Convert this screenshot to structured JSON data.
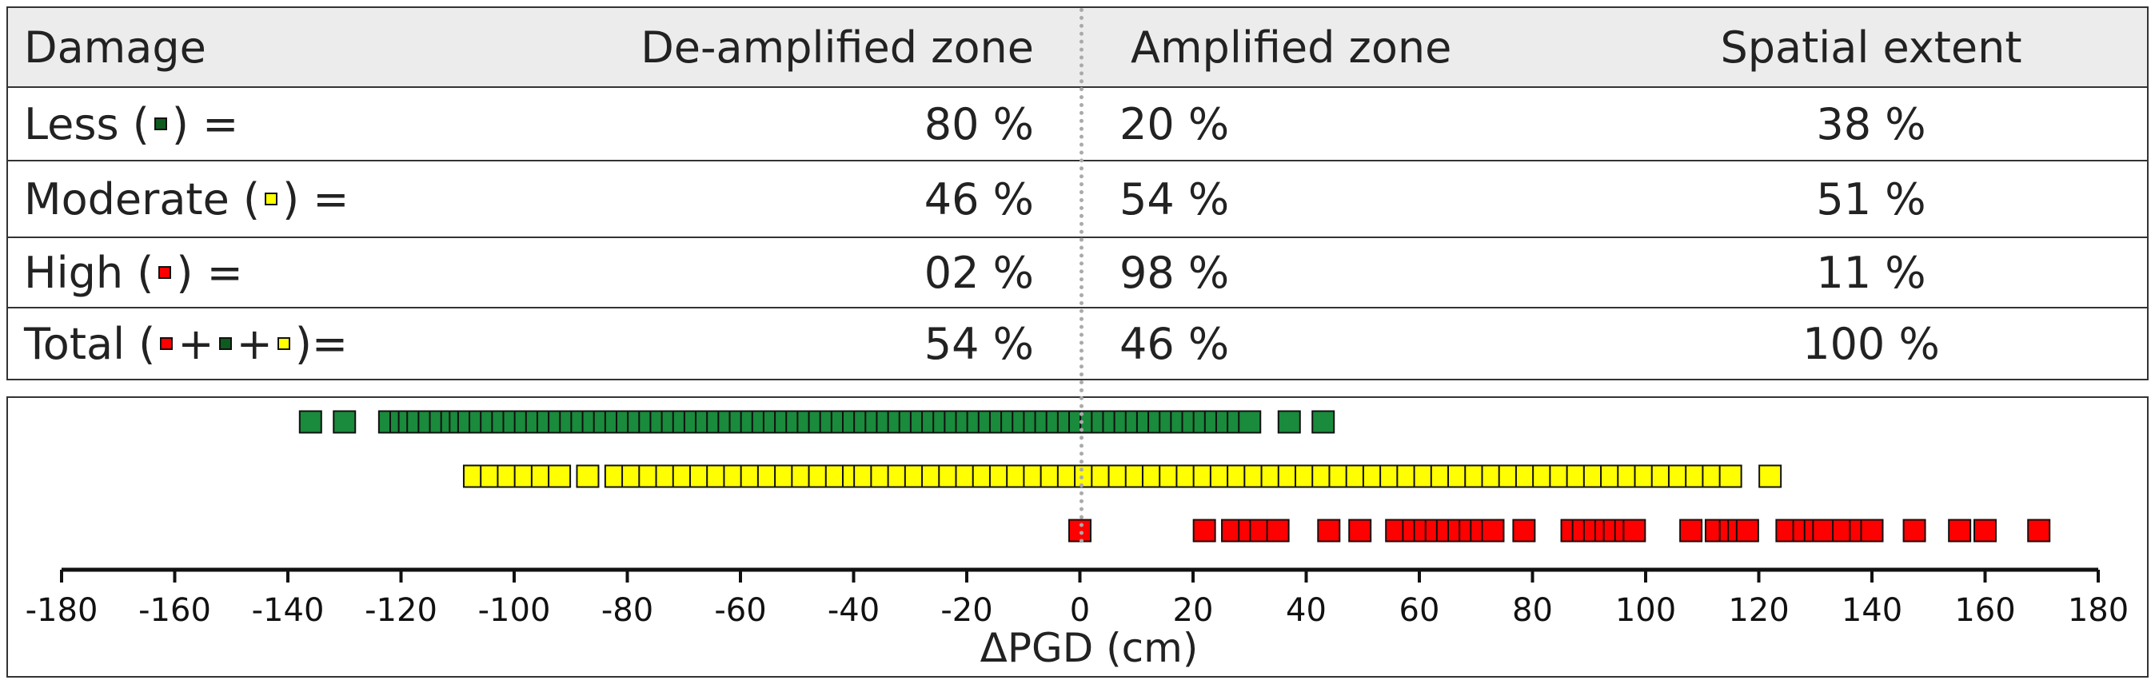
{
  "table": {
    "headers": {
      "damage": "Damage",
      "deamplified": "De-amplified zone",
      "amplified": "Amplified zone",
      "spatial": "Spatial extent"
    },
    "rows": [
      {
        "label": "Less (",
        "suffix": ") =",
        "de": "80 %",
        "amp": "20 %",
        "spatial": "38 %"
      },
      {
        "label": "Moderate (",
        "suffix": ") =",
        "de": "46 %",
        "amp": "54 %",
        "spatial": "51 %"
      },
      {
        "label": "High (",
        "suffix": ") =",
        "de": "02 %",
        "amp": "98 %",
        "spatial": "11 %"
      },
      {
        "label": "Total (",
        "plus1": "+",
        "plus2": "+",
        "suffix": ")=",
        "de": "54 %",
        "amp": "46 %",
        "spatial": "100 %"
      }
    ]
  },
  "colors": {
    "less": "#1a8a3c",
    "moderate": "#ffff00",
    "high": "#ff0000",
    "less_swatch": "#0d5c1e",
    "divider": "#aaaaaa"
  },
  "chart_data": {
    "type": "scatter",
    "xlabel": "ΔPGD (cm)",
    "xlim": [
      -180,
      180
    ],
    "xticks": [
      -180,
      -160,
      -140,
      -120,
      -100,
      -80,
      -60,
      -40,
      -20,
      0,
      20,
      40,
      60,
      80,
      100,
      120,
      140,
      160,
      180
    ],
    "series": [
      {
        "key": "less",
        "color": "#1a8a3c",
        "x": [
          -136,
          -130,
          -122,
          -120,
          -118.5,
          -117,
          -115,
          -113,
          -111,
          -109.5,
          -108,
          -106,
          -104,
          -102,
          -100,
          -98,
          -96,
          -94,
          -92,
          -90,
          -88,
          -86,
          -84,
          -82,
          -80,
          -78,
          -76,
          -74,
          -72,
          -70,
          -68,
          -66,
          -64,
          -62,
          -60,
          -58,
          -56,
          -54,
          -52,
          -50,
          -48,
          -46,
          -44,
          -42,
          -40,
          -38,
          -36,
          -34,
          -32,
          -30,
          -28,
          -26,
          -24,
          -22,
          -20,
          -18,
          -16,
          -14,
          -12,
          -10,
          -8,
          -6,
          -4,
          -2,
          0,
          2,
          4,
          6,
          8,
          10,
          12,
          14,
          16,
          18,
          20,
          22,
          24,
          26,
          28,
          30,
          37,
          43
        ]
      },
      {
        "key": "moderate",
        "color": "#ffff00",
        "x": [
          -107,
          -104,
          -101,
          -98,
          -95,
          -92,
          -87,
          -82,
          -79,
          -76,
          -73,
          -70,
          -67,
          -64,
          -61,
          -58,
          -55,
          -52,
          -49,
          -46,
          -43,
          -40,
          -38,
          -35,
          -32,
          -29,
          -26,
          -23,
          -20,
          -17,
          -14,
          -11,
          -8,
          -5,
          -2,
          1,
          4,
          7,
          10,
          13,
          16,
          19,
          22,
          25,
          28,
          31,
          34,
          37,
          40,
          43,
          46,
          49,
          52,
          55,
          58,
          61,
          64,
          67,
          70,
          73,
          76,
          79,
          82,
          85,
          88,
          91,
          94,
          97,
          100,
          103,
          106,
          109,
          112,
          115,
          122
        ]
      },
      {
        "key": "high",
        "color": "#ff0000",
        "x": [
          0,
          22,
          27,
          30,
          32,
          35,
          44,
          49.5,
          56,
          59,
          61,
          63,
          65,
          67,
          69,
          71,
          73,
          78.5,
          87,
          89,
          91,
          93,
          94.5,
          96.5,
          98,
          108,
          112.5,
          115,
          116.5,
          118,
          125,
          128,
          130,
          131.5,
          135,
          138,
          140,
          147.5,
          155.5,
          160,
          169.5
        ]
      }
    ]
  }
}
